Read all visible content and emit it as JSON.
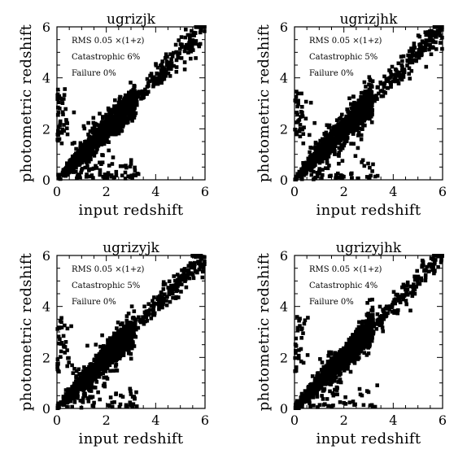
{
  "chart_data": [
    {
      "type": "scatter",
      "title": "ugrizjk",
      "xlabel": "input redshift",
      "ylabel": "photometric redshift",
      "xlim": [
        0,
        6
      ],
      "ylim": [
        0,
        6
      ],
      "xticks": [
        "0",
        "2",
        "4",
        "6"
      ],
      "yticks": [
        "0",
        "2",
        "4",
        "6"
      ],
      "annotations": [
        "RMS 0.05 ×(1+z)",
        "Catastrophic 6%",
        "Failure 0%"
      ],
      "rms": 0.05,
      "catastrophic_pct": 6,
      "failure_pct": 0
    },
    {
      "type": "scatter",
      "title": "ugrizjhk",
      "xlabel": "input redshift",
      "ylabel": "photometric redshift",
      "xlim": [
        0,
        6
      ],
      "ylim": [
        0,
        6
      ],
      "xticks": [
        "0",
        "2",
        "4",
        "6"
      ],
      "yticks": [
        "0",
        "2",
        "4",
        "6"
      ],
      "annotations": [
        "RMS 0.05 ×(1+z)",
        "Catastrophic 5%",
        "Failure 0%"
      ],
      "rms": 0.05,
      "catastrophic_pct": 5,
      "failure_pct": 0
    },
    {
      "type": "scatter",
      "title": "ugrizyjk",
      "xlabel": "input redshift",
      "ylabel": "photometric redshift",
      "xlim": [
        0,
        6
      ],
      "ylim": [
        0,
        6
      ],
      "xticks": [
        "0",
        "2",
        "4",
        "6"
      ],
      "yticks": [
        "0",
        "2",
        "4",
        "6"
      ],
      "annotations": [
        "RMS 0.05 ×(1+z)",
        "Catastrophic 5%",
        "Failure 0%"
      ],
      "rms": 0.05,
      "catastrophic_pct": 5,
      "failure_pct": 0
    },
    {
      "type": "scatter",
      "title": "ugrizyjhk",
      "xlabel": "input redshift",
      "ylabel": "photometric redshift",
      "xlim": [
        0,
        6
      ],
      "ylim": [
        0,
        6
      ],
      "xticks": [
        "0",
        "2",
        "4",
        "6"
      ],
      "yticks": [
        "0",
        "2",
        "4",
        "6"
      ],
      "annotations": [
        "RMS 0.05 ×(1+z)",
        "Catastrophic 4%",
        "Failure 0%"
      ],
      "rms": 0.05,
      "catastrophic_pct": 4,
      "failure_pct": 0
    }
  ]
}
